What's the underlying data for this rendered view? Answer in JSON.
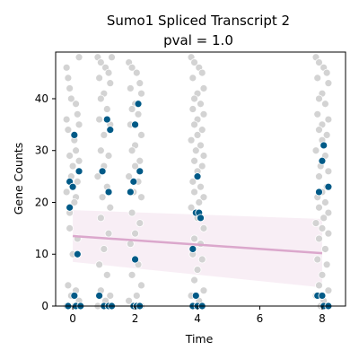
{
  "chart_data": {
    "type": "scatter",
    "title": "Sumo1 Spliced Transcript 2",
    "subtitle": "pval = 1.0",
    "xlabel": "Time",
    "ylabel": "Gene Counts",
    "xlim": [
      -0.55,
      8.75
    ],
    "ylim": [
      0,
      49
    ],
    "x_ticks": [
      0,
      2,
      4,
      6,
      8
    ],
    "y_ticks": [
      0,
      10,
      20,
      30,
      40
    ],
    "grid": false,
    "colors": {
      "background_points": "#d3d3d3",
      "highlight_points": "#005a87",
      "fit_line": "#dba7cc",
      "confidence_band": "#f7ecf4"
    },
    "series": [
      {
        "role": "background",
        "points": [
          [
            -0.2,
            46
          ],
          [
            -0.15,
            44
          ],
          [
            -0.1,
            42
          ],
          [
            -0.05,
            40
          ],
          [
            0.1,
            39
          ],
          [
            0.15,
            37
          ],
          [
            -0.2,
            36
          ],
          [
            0.2,
            35
          ],
          [
            -0.15,
            34
          ],
          [
            0.05,
            32
          ],
          [
            0.1,
            30
          ],
          [
            -0.1,
            29
          ],
          [
            0.2,
            28
          ],
          [
            0.0,
            27
          ],
          [
            -0.05,
            25
          ],
          [
            0.15,
            24
          ],
          [
            -0.2,
            22
          ],
          [
            0.1,
            21
          ],
          [
            0.05,
            20
          ],
          [
            -0.1,
            18
          ],
          [
            -0.1,
            15
          ],
          [
            0.15,
            13
          ],
          [
            0.0,
            10
          ],
          [
            -0.15,
            4
          ],
          [
            0.1,
            3
          ],
          [
            -0.05,
            2
          ],
          [
            0.2,
            1
          ],
          [
            -0.2,
            0
          ],
          [
            0.05,
            0
          ],
          [
            0.2,
            48
          ],
          [
            0.15,
            0
          ],
          [
            0.8,
            48
          ],
          [
            0.9,
            47
          ],
          [
            1.05,
            46
          ],
          [
            1.15,
            45
          ],
          [
            0.85,
            44
          ],
          [
            1.2,
            43
          ],
          [
            1.0,
            41
          ],
          [
            0.9,
            40
          ],
          [
            1.1,
            38
          ],
          [
            0.85,
            36
          ],
          [
            1.2,
            35
          ],
          [
            1.0,
            33
          ],
          [
            0.9,
            30
          ],
          [
            1.15,
            29
          ],
          [
            1.0,
            27
          ],
          [
            0.8,
            25
          ],
          [
            1.1,
            23
          ],
          [
            0.95,
            21
          ],
          [
            1.2,
            19
          ],
          [
            0.9,
            17
          ],
          [
            1.15,
            14
          ],
          [
            1.0,
            11
          ],
          [
            0.85,
            8
          ],
          [
            1.1,
            6
          ],
          [
            0.9,
            3
          ],
          [
            1.2,
            2
          ],
          [
            1.05,
            1
          ],
          [
            0.8,
            0
          ],
          [
            1.0,
            0
          ],
          [
            1.25,
            48
          ],
          [
            1.8,
            47
          ],
          [
            1.9,
            46
          ],
          [
            2.05,
            45
          ],
          [
            2.15,
            43
          ],
          [
            1.85,
            42
          ],
          [
            2.2,
            41
          ],
          [
            2.0,
            39
          ],
          [
            1.9,
            38
          ],
          [
            2.1,
            37
          ],
          [
            1.85,
            35
          ],
          [
            2.2,
            33
          ],
          [
            2.0,
            31
          ],
          [
            1.9,
            30
          ],
          [
            2.15,
            28
          ],
          [
            2.0,
            27
          ],
          [
            1.8,
            25
          ],
          [
            2.1,
            24
          ],
          [
            1.95,
            22
          ],
          [
            2.2,
            21
          ],
          [
            1.9,
            18
          ],
          [
            2.15,
            16
          ],
          [
            2.0,
            14
          ],
          [
            1.85,
            12
          ],
          [
            2.1,
            8
          ],
          [
            1.9,
            6
          ],
          [
            2.2,
            4
          ],
          [
            2.05,
            2
          ],
          [
            1.8,
            1
          ],
          [
            2.0,
            0
          ],
          [
            2.2,
            0
          ],
          [
            3.8,
            48
          ],
          [
            3.9,
            47
          ],
          [
            4.05,
            46
          ],
          [
            4.15,
            45
          ],
          [
            3.85,
            44
          ],
          [
            4.2,
            42
          ],
          [
            4.0,
            41
          ],
          [
            3.9,
            40
          ],
          [
            4.1,
            39
          ],
          [
            3.85,
            38
          ],
          [
            4.2,
            37
          ],
          [
            4.0,
            36
          ],
          [
            3.9,
            35
          ],
          [
            4.15,
            34
          ],
          [
            4.0,
            33
          ],
          [
            3.8,
            32
          ],
          [
            4.1,
            31
          ],
          [
            3.95,
            30
          ],
          [
            4.2,
            29
          ],
          [
            3.9,
            28
          ],
          [
            4.15,
            27
          ],
          [
            4.0,
            26
          ],
          [
            3.85,
            24
          ],
          [
            4.1,
            23
          ],
          [
            3.9,
            22
          ],
          [
            4.2,
            21
          ],
          [
            4.05,
            20
          ],
          [
            3.8,
            19
          ],
          [
            4.0,
            17
          ],
          [
            4.2,
            15
          ],
          [
            3.9,
            13
          ],
          [
            4.1,
            12
          ],
          [
            3.85,
            10
          ],
          [
            4.15,
            9
          ],
          [
            4.0,
            7
          ],
          [
            3.9,
            5
          ],
          [
            4.2,
            3
          ],
          [
            3.8,
            2
          ],
          [
            4.05,
            1
          ],
          [
            3.95,
            0
          ],
          [
            7.8,
            48
          ],
          [
            7.9,
            47
          ],
          [
            8.05,
            46
          ],
          [
            8.15,
            45
          ],
          [
            7.85,
            44
          ],
          [
            8.2,
            43
          ],
          [
            8.0,
            41
          ],
          [
            7.9,
            40
          ],
          [
            8.1,
            39
          ],
          [
            7.85,
            37
          ],
          [
            8.2,
            36
          ],
          [
            8.0,
            35
          ],
          [
            7.9,
            34
          ],
          [
            8.15,
            33
          ],
          [
            8.0,
            32
          ],
          [
            7.8,
            30
          ],
          [
            8.1,
            29
          ],
          [
            7.95,
            27
          ],
          [
            8.2,
            26
          ],
          [
            7.9,
            25
          ],
          [
            8.15,
            23
          ],
          [
            8.0,
            22
          ],
          [
            7.85,
            21
          ],
          [
            8.1,
            20
          ],
          [
            7.9,
            19
          ],
          [
            8.2,
            18
          ],
          [
            8.05,
            17
          ],
          [
            7.8,
            16
          ],
          [
            8.0,
            15
          ],
          [
            8.2,
            14
          ],
          [
            7.9,
            13
          ],
          [
            8.1,
            11
          ],
          [
            7.85,
            9
          ],
          [
            8.15,
            8
          ],
          [
            8.0,
            6
          ],
          [
            7.9,
            4
          ],
          [
            8.2,
            3
          ],
          [
            7.8,
            2
          ],
          [
            8.05,
            1
          ],
          [
            7.95,
            0
          ]
        ]
      },
      {
        "role": "highlighted",
        "points": [
          [
            0.05,
            33
          ],
          [
            0.2,
            26
          ],
          [
            -0.1,
            24
          ],
          [
            0.0,
            23
          ],
          [
            -0.1,
            19
          ],
          [
            0.15,
            10
          ],
          [
            0.05,
            2
          ],
          [
            -0.15,
            0
          ],
          [
            0.1,
            0
          ],
          [
            0.25,
            0
          ],
          [
            1.1,
            36
          ],
          [
            1.2,
            34
          ],
          [
            0.95,
            26
          ],
          [
            1.15,
            22
          ],
          [
            0.85,
            2
          ],
          [
            1.0,
            0
          ],
          [
            1.15,
            0
          ],
          [
            1.25,
            0
          ],
          [
            2.1,
            39
          ],
          [
            2.0,
            35
          ],
          [
            2.15,
            26
          ],
          [
            1.95,
            24
          ],
          [
            1.85,
            22
          ],
          [
            2.0,
            9
          ],
          [
            1.95,
            0
          ],
          [
            2.05,
            0
          ],
          [
            2.15,
            0
          ],
          [
            4.0,
            25
          ],
          [
            3.95,
            18
          ],
          [
            4.05,
            18
          ],
          [
            4.1,
            17
          ],
          [
            3.85,
            11
          ],
          [
            3.95,
            2
          ],
          [
            3.85,
            0
          ],
          [
            4.0,
            0
          ],
          [
            4.15,
            0
          ],
          [
            8.05,
            31
          ],
          [
            8.0,
            28
          ],
          [
            8.2,
            23
          ],
          [
            7.9,
            22
          ],
          [
            7.85,
            2
          ],
          [
            8.0,
            2
          ],
          [
            8.05,
            0
          ],
          [
            8.2,
            0
          ]
        ]
      }
    ],
    "fit": {
      "x": [
        0,
        8
      ],
      "y": [
        13.5,
        10.2
      ],
      "ci_lower": [
        8.5,
        3.6
      ],
      "ci_upper": [
        18.5,
        16.8
      ]
    }
  }
}
